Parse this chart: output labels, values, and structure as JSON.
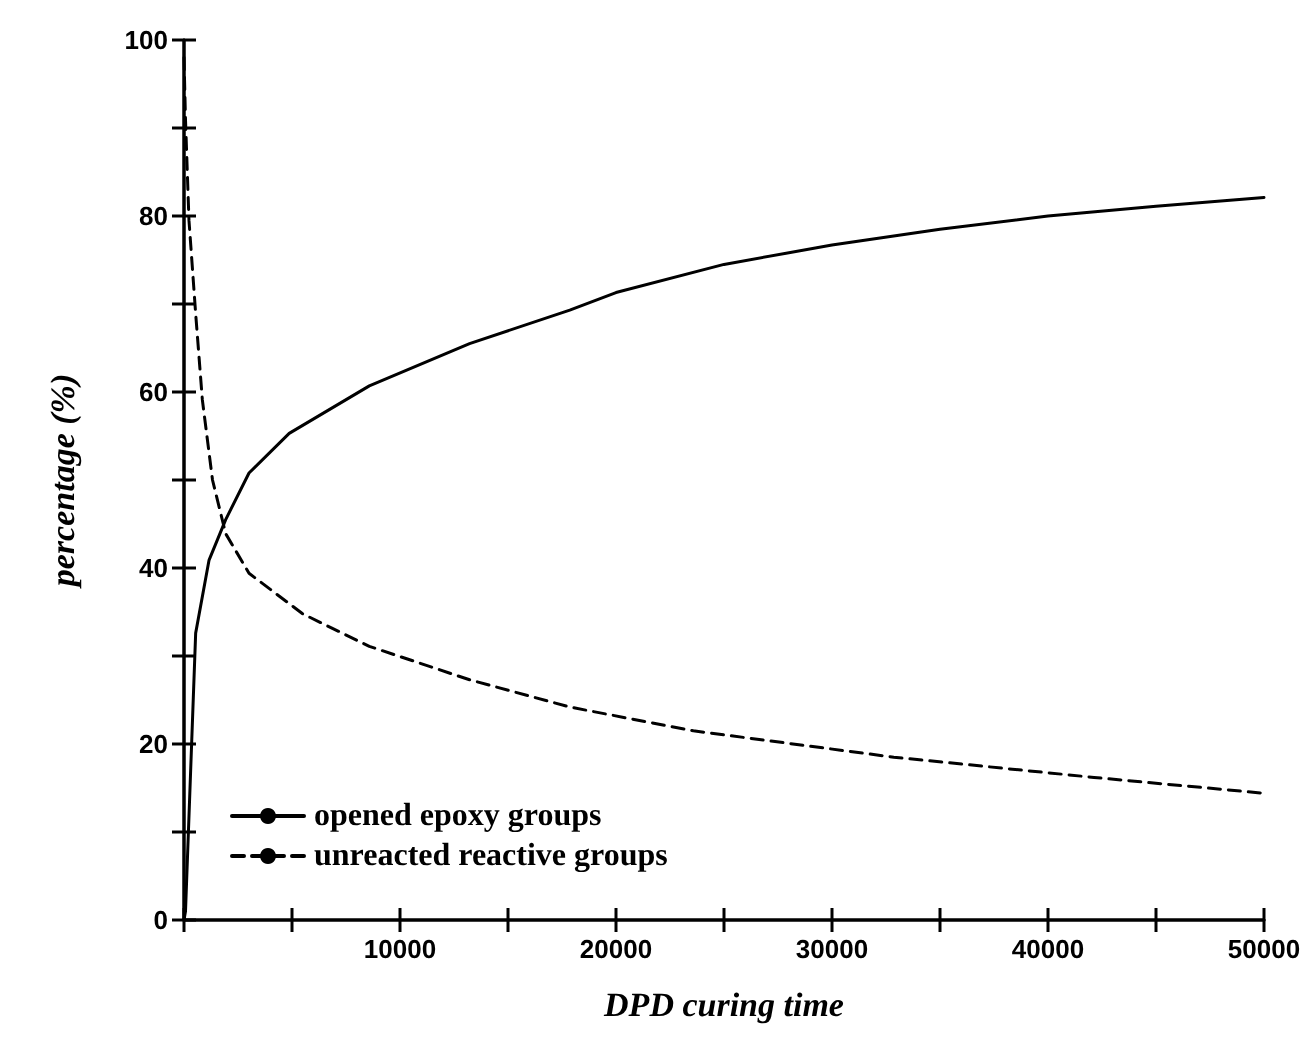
{
  "chart_data": {
    "type": "line",
    "xlabel": "DPD curing time",
    "ylabel": "percentage (%)",
    "xlim": [
      0,
      50000
    ],
    "ylim": [
      0,
      100
    ],
    "xticks": [
      {
        "value": 0,
        "label": null
      },
      {
        "value": 5000,
        "label": null
      },
      10000,
      {
        "value": 15000,
        "label": null
      },
      20000,
      {
        "value": 25000,
        "label": null
      },
      30000,
      {
        "value": 35000,
        "label": null
      },
      40000,
      {
        "value": 45000,
        "label": null
      },
      50000
    ],
    "yticks": [
      0,
      {
        "value": 10,
        "label": null
      },
      20,
      {
        "value": 30,
        "label": null
      },
      40,
      {
        "value": 50,
        "label": null
      },
      60,
      {
        "value": 70,
        "label": null
      },
      80,
      {
        "value": 90,
        "label": null
      },
      100
    ],
    "grid": false,
    "legend": "bottom left",
    "marker": "none",
    "series": [
      {
        "name": "opened epoxy groups",
        "color": "#000000",
        "line_style": "solid",
        "x": [
          0,
          70,
          540,
          1160,
          1930,
          3010,
          4870,
          8580,
          13220,
          17860,
          20000,
          25000,
          30000,
          35000,
          40000,
          45000,
          50000
        ],
        "values": [
          0,
          1,
          32.6,
          40.9,
          45.5,
          50.8,
          55.3,
          60.7,
          65.5,
          69.3,
          71.3,
          74.5,
          76.7,
          78.5,
          80,
          81.1,
          82.1
        ]
      },
      {
        "name": "unreacted reactive groups",
        "color": "#000000",
        "line_style": "dashed",
        "x": [
          0,
          70,
          230,
          540,
          850,
          1320,
          1930,
          3010,
          5490,
          8580,
          13220,
          17860,
          23580,
          32860,
          42130,
          50000
        ],
        "values": [
          98,
          90.9,
          79.5,
          68.9,
          59.1,
          50,
          43.9,
          39.4,
          34.8,
          31.1,
          27.3,
          24.2,
          21.5,
          18.5,
          16.2,
          14.4
        ]
      }
    ]
  }
}
